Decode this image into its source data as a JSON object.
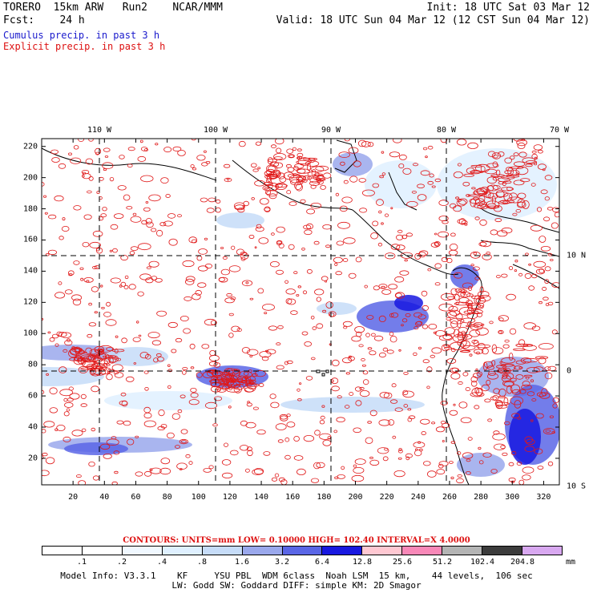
{
  "header": {
    "line1_left": "TORERO  15km ARW   Run2    NCAR/MMM",
    "line1_right": "Init: 18 UTC Sat 03 Mar 12",
    "line2_left": "Fcst:    24 h",
    "line2_right": "Valid: 18 UTC Sun 04 Mar 12 (12 CST Sun 04 Mar 12)",
    "legend_cumulus": "Cumulus precip. in past 3 h",
    "legend_explicit": "Explicit precip. in past 3 h"
  },
  "map": {
    "lon_labels": [
      "110 W",
      "100 W",
      "90 W",
      "80 W",
      "70 W"
    ],
    "lat_right_labels": [
      "10 N",
      "0",
      "10 S"
    ],
    "y_ticks": [
      "220",
      "200",
      "180",
      "160",
      "140",
      "120",
      "100",
      "80",
      "60",
      "40",
      "20"
    ],
    "x_ticks": [
      "20",
      "40",
      "60",
      "80",
      "100",
      "120",
      "140",
      "160",
      "180",
      "200",
      "220",
      "240",
      "260",
      "280",
      "300",
      "320"
    ],
    "colors": {
      "contour": "#e01818",
      "land_outline": "#000000",
      "grid": "#000000"
    }
  },
  "colorbar": {
    "contour_info": "CONTOURS:  UNITS=mm  LOW= 0.10000      HIGH=  102.40      INTERVAL=X  4.0000",
    "labels": [
      ".1",
      ".2",
      ".4",
      ".8",
      "1.6",
      "3.2",
      "6.4",
      "12.8",
      "25.6",
      "51.2",
      "102.4",
      "204.8"
    ],
    "unit": "mm",
    "colors": [
      "#ffffff",
      "#ffffff",
      "#f0f8ff",
      "#dff0ff",
      "#c6dcf8",
      "#9aa8ec",
      "#5a66e6",
      "#1818e0",
      "#ffc8d2",
      "#f888b8",
      "#b4b4b4",
      "#3c3c3c",
      "#d8a8f0"
    ]
  },
  "footer": {
    "line1": "Model Info: V3.3.1    KF     YSU PBL  WDM 6class  Noah LSM  15 km,    44 levels,  106 sec",
    "line2": "LW: Godd SW: Goddard DIFF: simple KM: 2D Smagor"
  }
}
